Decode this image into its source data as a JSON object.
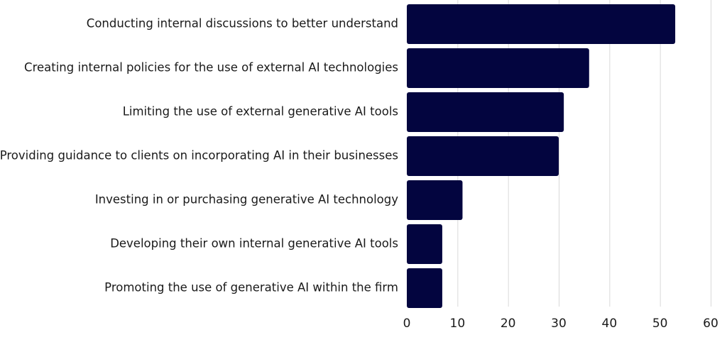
{
  "chart_data": {
    "type": "bar",
    "orientation": "horizontal",
    "categories": [
      "Conducting internal discussions to better understand",
      "Creating internal policies for the use of external AI technologies",
      "Limiting the use of external generative AI tools",
      "Providing guidance to clients on incorporating AI in their businesses",
      "Investing in or purchasing generative AI technology",
      "Developing their own internal generative AI tools",
      "Promoting the use of generative AI within the firm"
    ],
    "values": [
      53,
      36,
      31,
      30,
      11,
      7,
      7
    ],
    "xlim": [
      0,
      60
    ],
    "xticks": [
      0,
      10,
      20,
      30,
      40,
      50,
      60
    ],
    "grid": "vertical",
    "legend": "none",
    "bar_color": "#03053f"
  }
}
